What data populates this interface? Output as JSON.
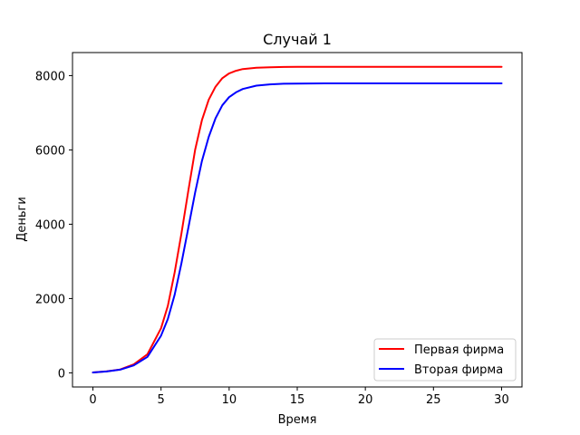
{
  "chart_data": {
    "type": "line",
    "title": "Случай 1",
    "xlabel": "Время",
    "ylabel": "Деньги",
    "xlim": [
      -1.5,
      31.5
    ],
    "ylim": [
      -380,
      8620
    ],
    "xticks": [
      0,
      5,
      10,
      15,
      20,
      25,
      30
    ],
    "yticks": [
      0,
      2000,
      4000,
      6000,
      8000
    ],
    "grid": false,
    "legend_position": "lower right",
    "series": [
      {
        "name": "Первая фирма",
        "color": "#ff0000",
        "x": [
          0,
          1,
          2,
          3,
          4,
          5,
          5.5,
          6,
          6.5,
          7,
          7.5,
          8,
          8.5,
          9,
          9.5,
          10,
          10.5,
          11,
          12,
          13,
          14,
          15,
          17,
          20,
          25,
          30
        ],
        "y": [
          10,
          40,
          90,
          230,
          500,
          1200,
          1800,
          2700,
          3750,
          4900,
          6000,
          6800,
          7350,
          7700,
          7930,
          8060,
          8130,
          8175,
          8210,
          8225,
          8232,
          8235,
          8237,
          8238,
          8238,
          8238
        ]
      },
      {
        "name": "Вторая фирма",
        "color": "#0000ff",
        "x": [
          0,
          1,
          2,
          3,
          4,
          5,
          5.5,
          6,
          6.5,
          7,
          7.5,
          8,
          8.5,
          9,
          9.5,
          10,
          10.5,
          11,
          12,
          13,
          14,
          15,
          17,
          20,
          25,
          30
        ],
        "y": [
          10,
          38,
          85,
          200,
          430,
          1000,
          1450,
          2100,
          2950,
          3900,
          4850,
          5700,
          6350,
          6850,
          7200,
          7420,
          7550,
          7640,
          7730,
          7765,
          7780,
          7787,
          7790,
          7791,
          7791,
          7791
        ]
      }
    ]
  }
}
